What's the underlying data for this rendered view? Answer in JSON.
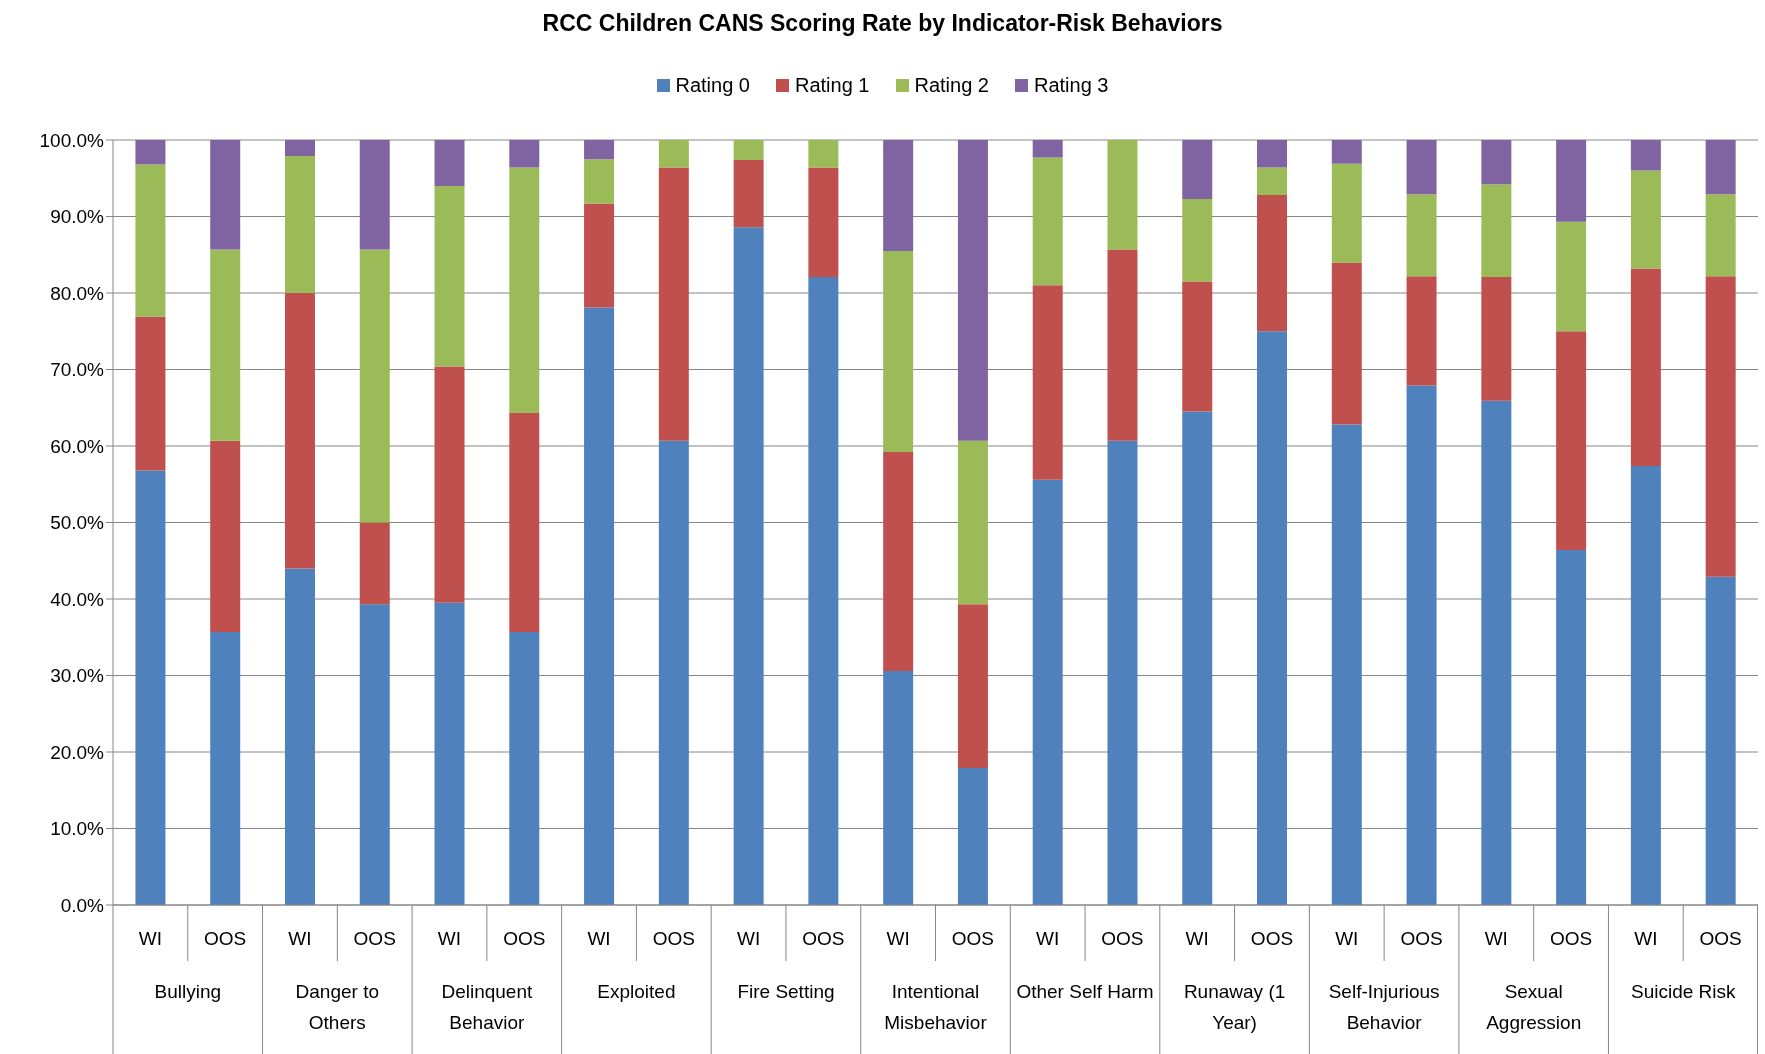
{
  "chart_data": {
    "type": "bar",
    "title": "RCC Children CANS Scoring Rate by Indicator-Risk Behaviors",
    "categories": [
      "WI",
      "OOS",
      "WI",
      "OOS",
      "WI",
      "OOS",
      "WI",
      "OOS",
      "WI",
      "OOS",
      "WI",
      "OOS",
      "WI",
      "OOS",
      "WI",
      "OOS",
      "WI",
      "OOS",
      "WI",
      "OOS",
      "WI",
      "OOS"
    ],
    "series": [
      {
        "name": "Rating 0",
        "color": "#4f81bd",
        "values": [
          56.8,
          35.7,
          44.0,
          39.3,
          39.5,
          35.7,
          78.1,
          60.7,
          88.6,
          82.1,
          30.6,
          17.9,
          55.6,
          60.7,
          64.5,
          75.0,
          62.8,
          67.9,
          65.9,
          46.4,
          57.4,
          42.9
        ]
      },
      {
        "name": "Rating 1",
        "color": "#c0504d",
        "values": [
          20.1,
          25.0,
          36.0,
          10.7,
          30.9,
          28.6,
          13.6,
          35.7,
          8.8,
          14.3,
          28.6,
          21.4,
          25.4,
          25.0,
          17.0,
          17.8,
          21.2,
          14.3,
          16.2,
          28.6,
          25.8,
          39.3
        ]
      },
      {
        "name": "Rating 2",
        "color": "#9bbb59",
        "values": [
          19.9,
          25.0,
          17.9,
          35.7,
          23.6,
          32.1,
          5.8,
          3.6,
          2.6,
          3.6,
          26.3,
          21.4,
          16.7,
          14.3,
          10.8,
          3.6,
          12.9,
          10.7,
          12.1,
          14.3,
          12.8,
          10.7
        ]
      },
      {
        "name": "Rating 3",
        "color": "#8064a2",
        "values": [
          3.2,
          14.3,
          2.1,
          14.3,
          6.0,
          3.6,
          2.5,
          0,
          0,
          0,
          14.5,
          39.3,
          2.3,
          0,
          7.7,
          3.6,
          3.1,
          7.1,
          5.8,
          10.7,
          4.0,
          7.1
        ]
      }
    ],
    "stacked": true,
    "ylim": [
      0,
      100
    ],
    "yticks": [
      {
        "value": 0,
        "label": "0.0%"
      },
      {
        "value": 10,
        "label": "10.0%"
      },
      {
        "value": 20,
        "label": "20.0%"
      },
      {
        "value": 30,
        "label": "30.0%"
      },
      {
        "value": 40,
        "label": "40.0%"
      },
      {
        "value": 50,
        "label": "50.0%"
      },
      {
        "value": 60,
        "label": "60.0%"
      },
      {
        "value": 70,
        "label": "70.0%"
      },
      {
        "value": 80,
        "label": "80.0%"
      },
      {
        "value": 90,
        "label": "90.0%"
      },
      {
        "value": 100,
        "label": "100.0%"
      }
    ],
    "grid": "y",
    "legend": "top",
    "annotations": [
      "Bullying",
      "Danger to Others",
      "Delinquent Behavior",
      "Exploited",
      "Fire Setting",
      "Intentional Misbehavior",
      "Other Self Harm",
      "Runaway (1 Year)",
      "Self-Injurious Behavior",
      "Sexual Aggression",
      "Suicide Risk"
    ]
  }
}
